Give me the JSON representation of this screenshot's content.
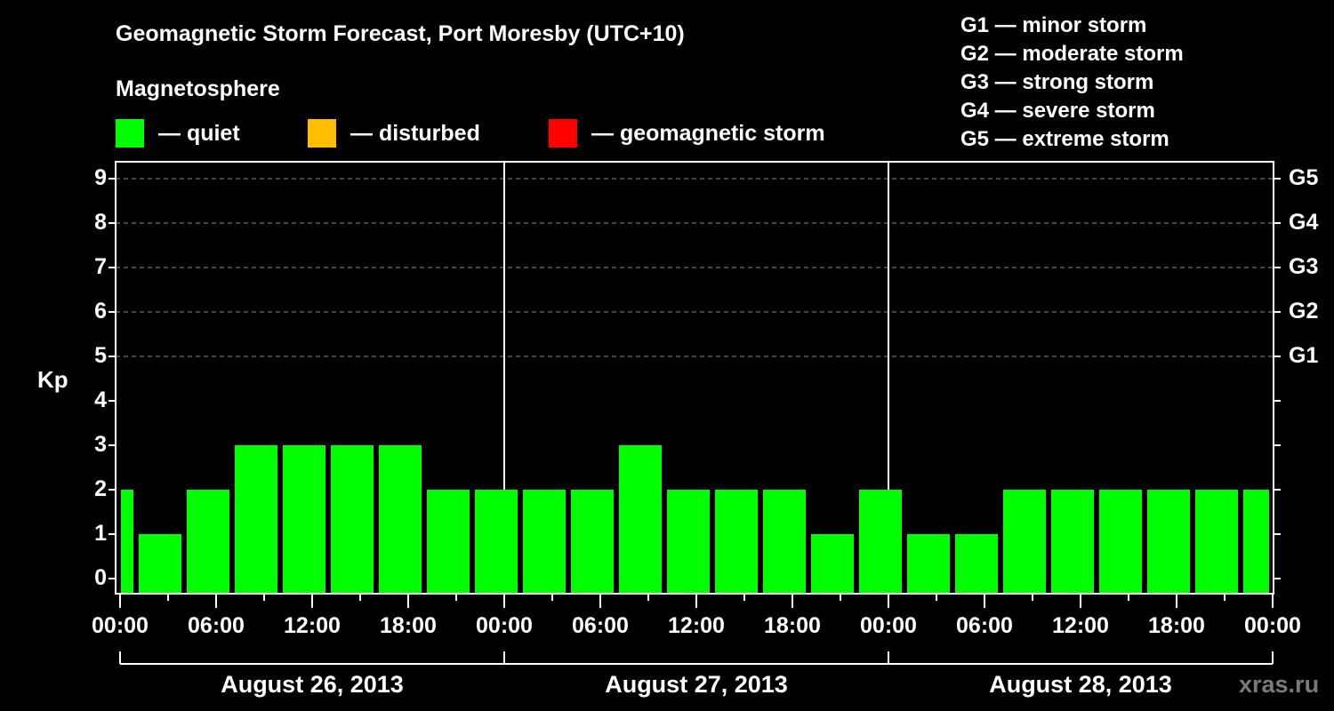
{
  "header": {
    "title": "Geomagnetic Storm Forecast, Port Moresby (UTC+10)",
    "subtitle": "Magnetosphere"
  },
  "legend": {
    "items": [
      {
        "label": "— quiet",
        "color": "#00ff00"
      },
      {
        "label": "— disturbed",
        "color": "#ffbf00"
      },
      {
        "label": "— geomagnetic storm",
        "color": "#ff0000"
      }
    ]
  },
  "g_scale": [
    "G1 — minor storm",
    "G2 — moderate storm",
    "G3 — strong storm",
    "G4 — severe storm",
    "G5 — extreme storm"
  ],
  "axis": {
    "ylabel": "Kp",
    "yticks": [
      "0",
      "1",
      "2",
      "3",
      "4",
      "5",
      "6",
      "7",
      "8",
      "9"
    ],
    "right_ticks": {
      "5": "G1",
      "6": "G2",
      "7": "G3",
      "8": "G4",
      "9": "G5"
    },
    "xticks": [
      "00:00",
      "06:00",
      "12:00",
      "18:00",
      "00:00",
      "06:00",
      "12:00",
      "18:00",
      "00:00",
      "06:00",
      "12:00",
      "18:00",
      "00:00"
    ],
    "dates": [
      "August 26, 2013",
      "August 27, 2013",
      "August 28, 2013"
    ]
  },
  "watermark": "xras.ru",
  "chart_data": {
    "type": "bar",
    "title": "Geomagnetic Storm Forecast, Port Moresby (UTC+10)",
    "xlabel": "",
    "ylabel": "Kp",
    "ylim": [
      0,
      9
    ],
    "grid": "dashed horizontal lines at Kp 5-9",
    "legend_position": "top",
    "categories": [
      "Aug 26 00:00-01:00",
      "Aug 26 01:00-04:00",
      "Aug 26 04:00-07:00",
      "Aug 26 07:00-10:00",
      "Aug 26 10:00-13:00",
      "Aug 26 13:00-16:00",
      "Aug 26 16:00-19:00",
      "Aug 26 19:00-22:00",
      "Aug 26 22:00-Aug 27 01:00",
      "Aug 27 01:00-04:00",
      "Aug 27 04:00-07:00",
      "Aug 27 07:00-10:00",
      "Aug 27 10:00-13:00",
      "Aug 27 13:00-16:00",
      "Aug 27 16:00-19:00",
      "Aug 27 19:00-22:00",
      "Aug 27 22:00-Aug 28 01:00",
      "Aug 28 01:00-04:00",
      "Aug 28 04:00-07:00",
      "Aug 28 07:00-10:00",
      "Aug 28 10:00-13:00",
      "Aug 28 13:00-16:00",
      "Aug 28 16:00-19:00",
      "Aug 28 19:00-22:00",
      "Aug 28 22:00-24:00"
    ],
    "start_hours": [
      0,
      1,
      4,
      7,
      10,
      13,
      16,
      19,
      22,
      25,
      28,
      31,
      34,
      37,
      40,
      43,
      46,
      49,
      52,
      55,
      58,
      61,
      64,
      67,
      70
    ],
    "end_hours": [
      1,
      4,
      7,
      10,
      13,
      16,
      19,
      22,
      25,
      28,
      31,
      34,
      37,
      40,
      43,
      46,
      49,
      52,
      55,
      58,
      61,
      64,
      67,
      70,
      72
    ],
    "values": [
      2,
      1,
      2,
      3,
      3,
      3,
      3,
      2,
      2,
      2,
      2,
      3,
      2,
      2,
      2,
      1,
      2,
      1,
      1,
      2,
      2,
      2,
      2,
      2,
      2
    ],
    "status": [
      "quiet",
      "quiet",
      "quiet",
      "quiet",
      "quiet",
      "quiet",
      "quiet",
      "quiet",
      "quiet",
      "quiet",
      "quiet",
      "quiet",
      "quiet",
      "quiet",
      "quiet",
      "quiet",
      "quiet",
      "quiet",
      "quiet",
      "quiet",
      "quiet",
      "quiet",
      "quiet",
      "quiet",
      "quiet"
    ],
    "g_levels": {
      "G1": 5,
      "G2": 6,
      "G3": 7,
      "G4": 8,
      "G5": 9
    }
  }
}
